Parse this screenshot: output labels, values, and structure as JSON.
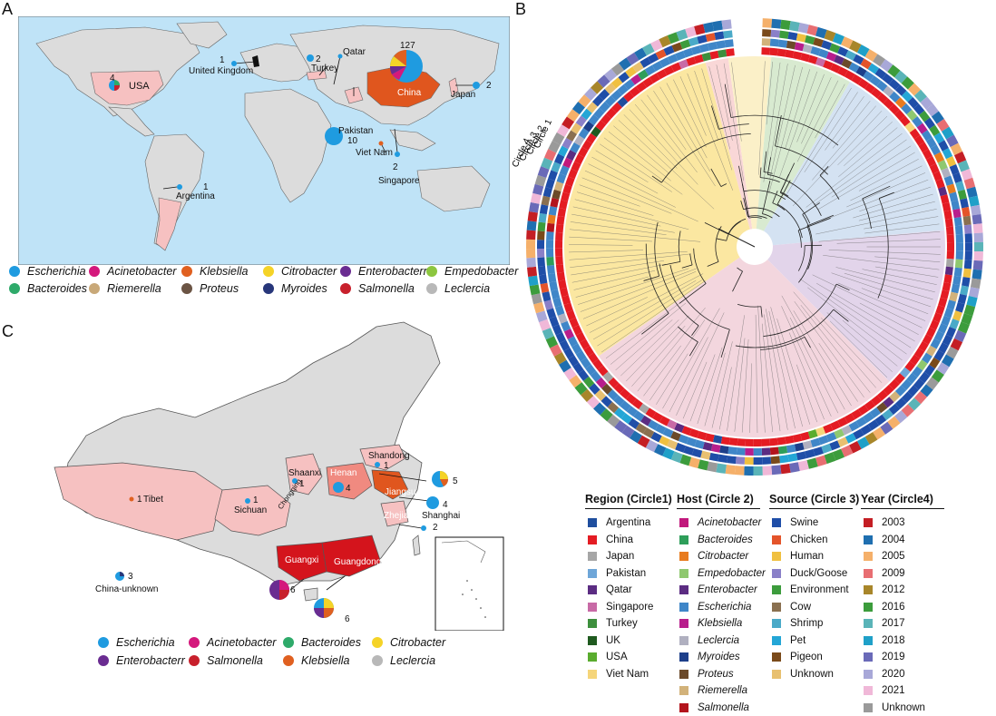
{
  "panels": {
    "a": "A",
    "b": "B",
    "c": "C"
  },
  "world_map": {
    "labels": [
      {
        "text": "USA",
        "count": "4"
      },
      {
        "text": "United Kingdom",
        "count": "1"
      },
      {
        "text": "Turkey",
        "count": "2"
      },
      {
        "text": "Qatar",
        "count": ""
      },
      {
        "text": "China",
        "count": "127"
      },
      {
        "text": "Japan",
        "count": "2"
      },
      {
        "text": "Pakistan",
        "count": "10"
      },
      {
        "text": "Viet Nam",
        "count": ""
      },
      {
        "text": "Singapore",
        "count": "2"
      },
      {
        "text": "Argentina",
        "count": "1"
      }
    ]
  },
  "legend_a": [
    {
      "label": "Escherichia",
      "color": "#1f9be0"
    },
    {
      "label": "Acinetobacter",
      "color": "#d4187c"
    },
    {
      "label": "Klebsiella",
      "color": "#e06020"
    },
    {
      "label": "Citrobacter",
      "color": "#f5d327"
    },
    {
      "label": "Enterobacterr",
      "color": "#6a2c91"
    },
    {
      "label": "Empedobacter",
      "color": "#8cc63f"
    },
    {
      "label": "Bacteroides",
      "color": "#2eaa6a"
    },
    {
      "label": "Riemerella",
      "color": "#c8a878"
    },
    {
      "label": "Proteus",
      "color": "#6b5444"
    },
    {
      "label": "Myroides",
      "color": "#27367a"
    },
    {
      "label": "Salmonella",
      "color": "#c8202c"
    },
    {
      "label": "Leclercia",
      "color": "#b8b8b8"
    }
  ],
  "china_map": {
    "labels": [
      {
        "text": "Shandong",
        "count": "1"
      },
      {
        "text": "Shaanxi",
        "count": "1"
      },
      {
        "text": "Henan",
        "count": "4"
      },
      {
        "text": "Jiangsu",
        "count": "5"
      },
      {
        "text": "Tibet",
        "count": "1"
      },
      {
        "text": "Sichuan",
        "count": "1"
      },
      {
        "text": "Shanghai",
        "count": "4"
      },
      {
        "text": "Zhejiang",
        "count": "2"
      },
      {
        "text": "Guangxi",
        "count": "6"
      },
      {
        "text": "Guangdong",
        "count": "6"
      },
      {
        "text": "China-unknown",
        "count": "3"
      },
      {
        "text": "Chongqing",
        "count": ""
      }
    ]
  },
  "legend_c": [
    {
      "label": "Escherichia",
      "color": "#1f9be0"
    },
    {
      "label": "Acinetobacter",
      "color": "#d4187c"
    },
    {
      "label": "Bacteroides",
      "color": "#2eaa6a"
    },
    {
      "label": "Citrobacter",
      "color": "#f5d327"
    },
    {
      "label": "Enterobacterr",
      "color": "#6a2c91"
    },
    {
      "label": "Salmonella",
      "color": "#c8202c"
    },
    {
      "label": "Klebsiella",
      "color": "#e06020"
    },
    {
      "label": "Leclercia",
      "color": "#b8b8b8"
    }
  ],
  "tree": {
    "circle_labels": [
      "Circle 4",
      "Circle 3",
      "Circle 2",
      "Circle 1"
    ]
  },
  "legend_b": {
    "region": {
      "title": "Region (Circle1)",
      "items": [
        {
          "label": "Argentina",
          "color": "#1f4e9e"
        },
        {
          "label": "China",
          "color": "#e41c23"
        },
        {
          "label": "Japan",
          "color": "#a6a6a6"
        },
        {
          "label": "Pakistan",
          "color": "#6ea6d8"
        },
        {
          "label": "Qatar",
          "color": "#5b2c82"
        },
        {
          "label": "Singapore",
          "color": "#c86aa6"
        },
        {
          "label": "Turkey",
          "color": "#3d8f3d"
        },
        {
          "label": "UK",
          "color": "#1f5a1f"
        },
        {
          "label": "USA",
          "color": "#5aac2e"
        },
        {
          "label": "Viet Nam",
          "color": "#f5d57a"
        }
      ]
    },
    "host": {
      "title": "Host (Circle 2)",
      "items": [
        {
          "label": "Acinetobacter",
          "color": "#c1187c"
        },
        {
          "label": "Bacteroides",
          "color": "#2e9e5a"
        },
        {
          "label": "Citrobacter",
          "color": "#e87b1e"
        },
        {
          "label": "Empedobacter",
          "color": "#8fc86f"
        },
        {
          "label": "Enterobacter",
          "color": "#5b2c82"
        },
        {
          "label": "Escherichia",
          "color": "#3f86c8"
        },
        {
          "label": "Klebsiella",
          "color": "#b81e8c"
        },
        {
          "label": "Leclercia",
          "color": "#b0b0c0"
        },
        {
          "label": "Myroides",
          "color": "#1d3f8a"
        },
        {
          "label": "Proteus",
          "color": "#6b4a2a"
        },
        {
          "label": "Riemerella",
          "color": "#d2b27a"
        },
        {
          "label": "Salmonella",
          "color": "#b3141c"
        }
      ]
    },
    "source": {
      "title": "Source (Circle 3)",
      "items": [
        {
          "label": "Swine",
          "color": "#1f4ea8"
        },
        {
          "label": "Chicken",
          "color": "#e4542a"
        },
        {
          "label": "Human",
          "color": "#f0c040"
        },
        {
          "label": "Duck/Goose",
          "color": "#8a80c8"
        },
        {
          "label": "Environment",
          "color": "#3c9c3c"
        },
        {
          "label": "Cow",
          "color": "#8a7050"
        },
        {
          "label": "Shrimp",
          "color": "#4aaac8"
        },
        {
          "label": "Pet",
          "color": "#24a6d6"
        },
        {
          "label": "Pigeon",
          "color": "#7a4a1a"
        },
        {
          "label": "Unknown",
          "color": "#e8c070"
        }
      ]
    },
    "year": {
      "title": "Year (Circle4)",
      "items": [
        {
          "label": "2003",
          "color": "#c41e24"
        },
        {
          "label": "2004",
          "color": "#1f6fb0"
        },
        {
          "label": "2005",
          "color": "#f5b06a"
        },
        {
          "label": "2009",
          "color": "#e86e72"
        },
        {
          "label": "2012",
          "color": "#a8862a"
        },
        {
          "label": "2016",
          "color": "#3c9c3c"
        },
        {
          "label": "2017",
          "color": "#5ab4b8"
        },
        {
          "label": "2018",
          "color": "#1fa0c8"
        },
        {
          "label": "2019",
          "color": "#6a6ab8"
        },
        {
          "label": "2020",
          "color": "#a8a8d8"
        },
        {
          "label": "2021",
          "color": "#f0b8d8"
        },
        {
          "label": "Unknown",
          "color": "#9a9a9a"
        }
      ]
    }
  }
}
